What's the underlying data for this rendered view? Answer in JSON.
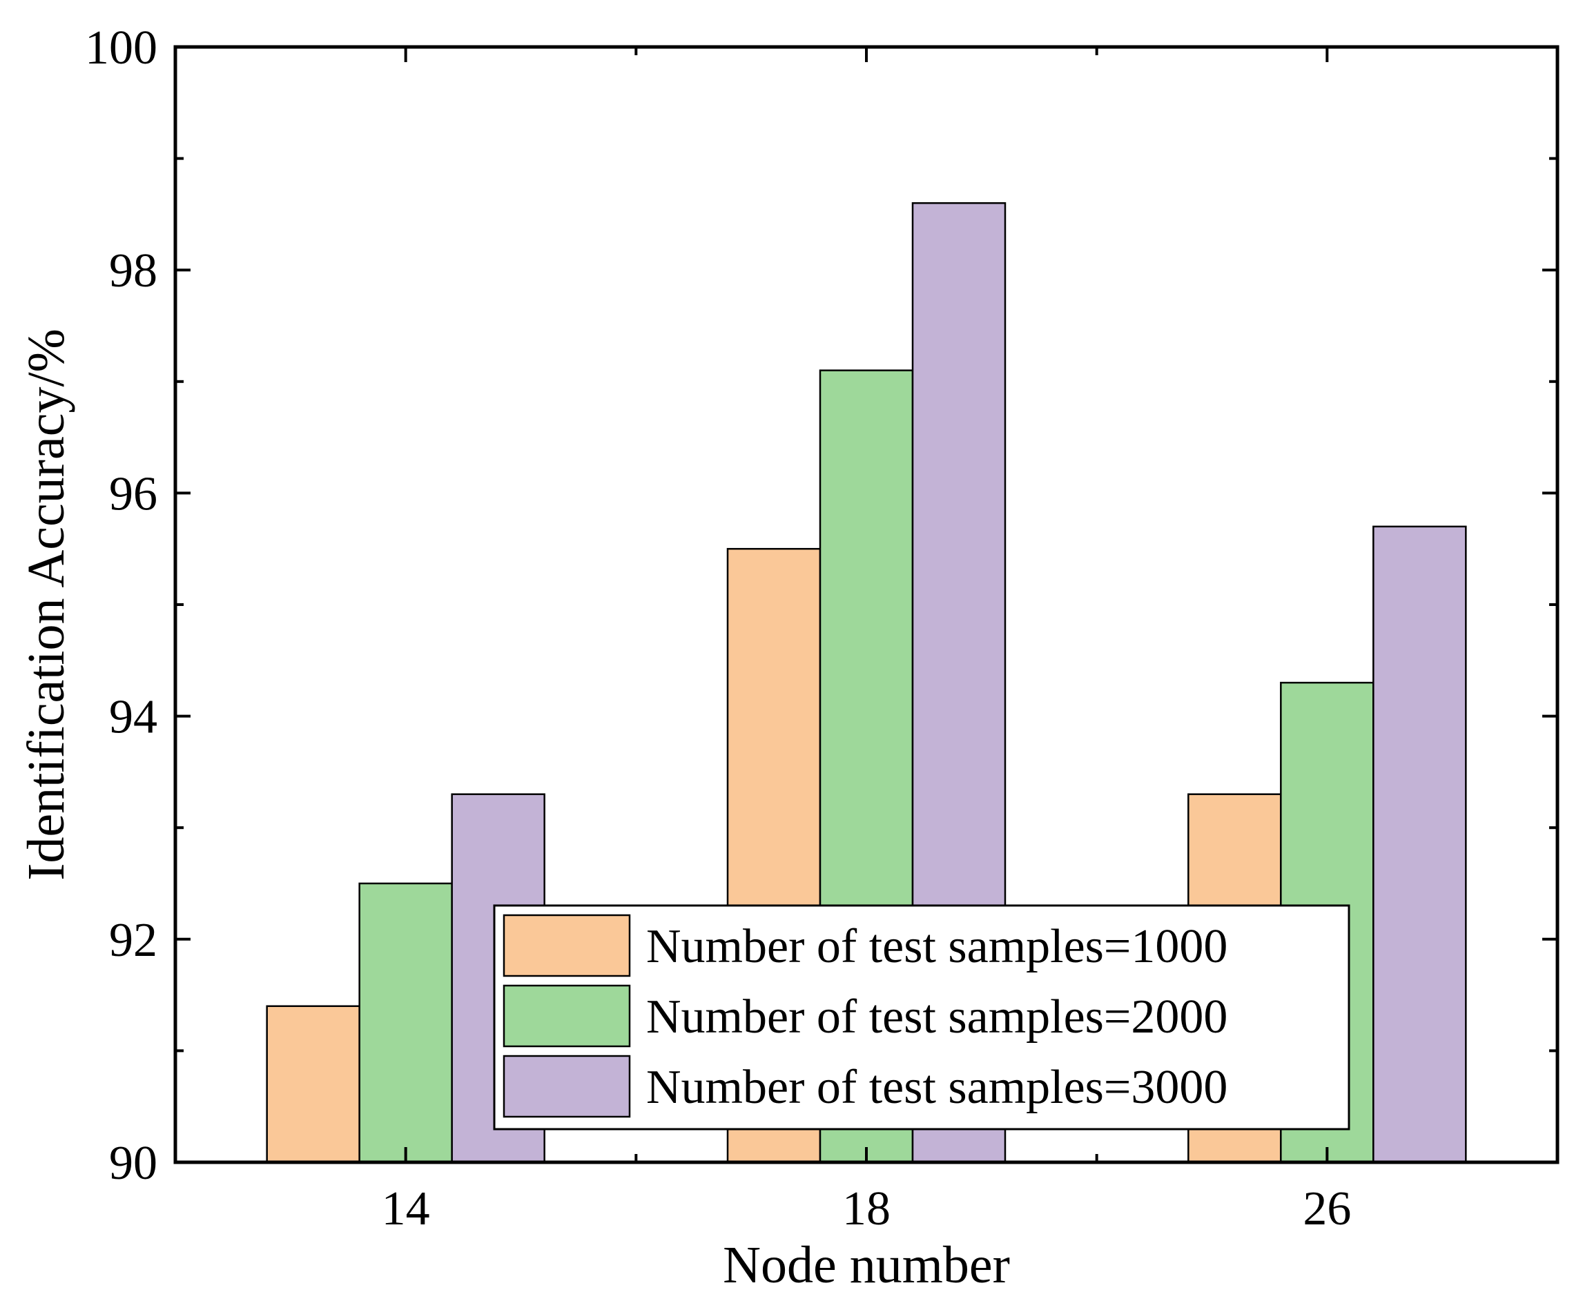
{
  "chart_data": {
    "type": "bar",
    "title": "",
    "xlabel": "Node number",
    "ylabel": "Identification Accuracy/%",
    "categories": [
      "14",
      "18",
      "26"
    ],
    "ylim": [
      90,
      100
    ],
    "yticks": [
      "90",
      "92",
      "94",
      "96",
      "98",
      "100"
    ],
    "ytick_values": [
      90,
      92,
      94,
      96,
      98,
      100
    ],
    "series": [
      {
        "name": "Number of test samples=1000",
        "color": "#FAC898",
        "values": [
          91.4,
          95.5,
          93.3
        ]
      },
      {
        "name": "Number of test samples=2000",
        "color": "#9ED89A",
        "values": [
          92.5,
          97.1,
          94.3
        ]
      },
      {
        "name": "Number of test samples=3000",
        "color": "#C3B3D6",
        "values": [
          93.3,
          98.6,
          95.7
        ]
      }
    ],
    "legend_position": "bottom-center",
    "grid": false
  }
}
